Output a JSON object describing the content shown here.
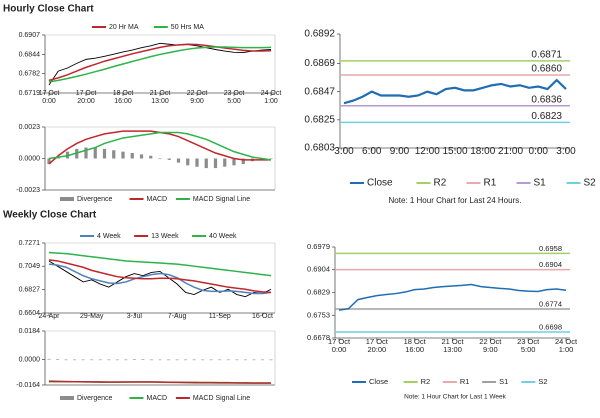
{
  "headers": [
    "Hourly Close Chart",
    "Weekly Close Chart"
  ],
  "chart_data": [
    {
      "type": "line",
      "legend": "top",
      "categories": [
        "17 Oct 0:00",
        null,
        null,
        null,
        "17 Oct 20:00",
        null,
        null,
        null,
        "18 Oct 16:00",
        null,
        null,
        null,
        "21 Oct 13:00",
        null,
        null,
        null,
        "22 Oct 9:00",
        null,
        null,
        null,
        "23 Oct 5:00",
        null,
        null,
        null,
        "24 Oct 1:00"
      ],
      "ylim": [
        0.6719,
        0.6907
      ],
      "yticks": [
        0.6719,
        0.6782,
        0.6844,
        0.6907
      ],
      "series": [
        {
          "color": "#000000",
          "values": [
            0.6745,
            0.679,
            0.68,
            0.6815,
            0.6828,
            0.6832,
            0.6838,
            0.6845,
            0.6852,
            0.6858,
            0.6866,
            0.6872,
            0.688,
            0.6877,
            0.6874,
            0.6876,
            0.6872,
            0.6866,
            0.686,
            0.6855,
            0.6851,
            0.685,
            0.6855,
            0.6858,
            0.686
          ]
        },
        {
          "name": "20 Hr MA",
          "color": "#c0272d",
          "values": [
            0.676,
            0.6768,
            0.6778,
            0.679,
            0.6802,
            0.6812,
            0.6822,
            0.683,
            0.6838,
            0.6846,
            0.6853,
            0.686,
            0.6867,
            0.6872,
            0.6875,
            0.6877,
            0.6876,
            0.6873,
            0.6869,
            0.6865,
            0.6861,
            0.6857,
            0.6855,
            0.6855,
            0.6856
          ]
        },
        {
          "name": "50 Hrs MA",
          "color": "#2db34a",
          "values": [
            0.6755,
            0.676,
            0.6766,
            0.6773,
            0.678,
            0.6788,
            0.6796,
            0.6805,
            0.6813,
            0.6821,
            0.6829,
            0.6837,
            0.6844,
            0.685,
            0.6856,
            0.6861,
            0.6865,
            0.6867,
            0.6868,
            0.6868,
            0.6867,
            0.6866,
            0.6866,
            0.6866,
            0.6867
          ]
        }
      ]
    },
    {
      "type": "line",
      "legend": "bottom",
      "ylim": [
        -0.0023,
        0.0023
      ],
      "yticks": [
        -0.0023,
        {
          "value": 0,
          "label": "0.0000"
        },
        0.0023
      ],
      "series": [
        {
          "name": "Divergence",
          "color": "#8c8c8c",
          "style": "bar",
          "values": [
            -0.0004,
            0.0001,
            0.0005,
            0.0007,
            0.0008,
            0.0008,
            0.0007,
            0.0006,
            0.0005,
            0.0004,
            0.0003,
            0.0002,
            0.0,
            -0.0001,
            -0.0003,
            -0.0005,
            -0.0006,
            -0.0007,
            -0.0007,
            -0.0006,
            -0.0005,
            -0.0004,
            -0.0002,
            -0.0001,
            0.0
          ]
        },
        {
          "name": "MACD",
          "color": "#c0272d",
          "values": [
            -0.0004,
            0.0002,
            0.0007,
            0.0011,
            0.0014,
            0.0016,
            0.0018,
            0.0019,
            0.002,
            0.002,
            0.002,
            0.002,
            0.0019,
            0.0018,
            0.0016,
            0.0013,
            0.001,
            0.0007,
            0.0004,
            0.0002,
            0.0,
            -0.0001,
            -0.0001,
            -0.0001,
            -0.0001
          ]
        },
        {
          "name": "MACD Signal Line",
          "color": "#2db34a",
          "values": [
            0.0,
            0.0001,
            0.0002,
            0.0004,
            0.0006,
            0.0008,
            0.0011,
            0.0013,
            0.0015,
            0.0016,
            0.0017,
            0.0018,
            0.0019,
            0.0019,
            0.0019,
            0.0018,
            0.0016,
            0.0014,
            0.0011,
            0.0008,
            0.0005,
            0.0003,
            0.0001,
            0.0,
            -0.0001
          ]
        }
      ]
    },
    {
      "type": "line",
      "legend": "bottom",
      "note": "Note: 1 Hour Chart for Last 24 Hours.",
      "categories": [
        "3:00",
        null,
        null,
        "6:00",
        null,
        null,
        "9:00",
        null,
        null,
        "12:00",
        null,
        null,
        "15:00",
        null,
        null,
        "18:00",
        null,
        null,
        "21:00",
        null,
        null,
        "0:00",
        null,
        null,
        "3:00"
      ],
      "ylim": [
        0.6803,
        0.6892
      ],
      "yticks": [
        0.6803,
        0.6825,
        0.6847,
        0.6869,
        0.6892
      ],
      "series": [
        {
          "name": "Close",
          "color": "#1f6db5",
          "values": [
            0.6838,
            0.684,
            0.6843,
            0.6847,
            0.6844,
            0.6844,
            0.6844,
            0.6843,
            0.6844,
            0.6847,
            0.6845,
            0.6849,
            0.685,
            0.6848,
            0.6848,
            0.685,
            0.6852,
            0.6853,
            0.6851,
            0.6852,
            0.685,
            0.6851,
            0.6849,
            0.6856,
            0.6849
          ]
        }
      ],
      "reference_lines": [
        {
          "name": "R2",
          "value": 0.6871,
          "color": "#a3d063"
        },
        {
          "name": "R1",
          "value": 0.686,
          "label": "0.6860",
          "color": "#e8a9a9"
        },
        {
          "name": "S1",
          "value": 0.6836,
          "color": "#b59bd0"
        },
        {
          "name": "S2",
          "value": 0.6823,
          "color": "#6fd0e3"
        }
      ]
    },
    {
      "type": "line",
      "legend": "top",
      "categories": [
        "24-Apr",
        null,
        null,
        null,
        null,
        "29-May",
        null,
        null,
        null,
        null,
        "3-Jul",
        null,
        null,
        null,
        null,
        "7-Aug",
        null,
        null,
        null,
        null,
        "11-Sep",
        null,
        null,
        null,
        null,
        "16-Oct",
        null
      ],
      "ylim": [
        0.6604,
        0.7271
      ],
      "yticks": [
        0.6604,
        0.6827,
        0.7049,
        0.7271
      ],
      "series": [
        {
          "color": "#000000",
          "values": [
            0.71,
            0.705,
            0.7,
            0.695,
            0.69,
            0.692,
            0.688,
            0.685,
            0.69,
            0.695,
            0.698,
            0.696,
            0.699,
            0.7,
            0.694,
            0.688,
            0.68,
            0.678,
            0.682,
            0.685,
            0.68,
            0.683,
            0.678,
            0.676,
            0.68,
            0.679,
            0.683
          ]
        },
        {
          "name": "4 Week",
          "color": "#4f81bd",
          "values": [
            0.707,
            0.706,
            0.704,
            0.7,
            0.696,
            0.693,
            0.691,
            0.689,
            0.6885,
            0.69,
            0.693,
            0.695,
            0.697,
            0.698,
            0.697,
            0.694,
            0.689,
            0.685,
            0.682,
            0.681,
            0.681,
            0.6815,
            0.681,
            0.68,
            0.679,
            0.679,
            0.68
          ]
        },
        {
          "name": "13 Week",
          "color": "#c0272d",
          "values": [
            0.711,
            0.71,
            0.708,
            0.706,
            0.704,
            0.701,
            0.699,
            0.697,
            0.695,
            0.694,
            0.6935,
            0.693,
            0.693,
            0.6935,
            0.6935,
            0.693,
            0.692,
            0.691,
            0.6895,
            0.688,
            0.6865,
            0.685,
            0.684,
            0.683,
            0.6815,
            0.6805,
            0.68
          ]
        },
        {
          "name": "40 Week",
          "color": "#2db34a",
          "values": [
            0.718,
            0.7175,
            0.717,
            0.716,
            0.715,
            0.714,
            0.713,
            0.712,
            0.711,
            0.71,
            0.7095,
            0.709,
            0.7085,
            0.708,
            0.7075,
            0.707,
            0.706,
            0.705,
            0.704,
            0.703,
            0.702,
            0.701,
            0.7,
            0.699,
            0.698,
            0.697,
            0.696
          ]
        }
      ]
    },
    {
      "type": "line",
      "legend": "bottom",
      "ylim": [
        -0.0164,
        0.0184
      ],
      "yticks": [
        -0.0164,
        {
          "value": 0,
          "label": "0.0000"
        },
        0.0184
      ],
      "series": [
        {
          "name": "Divergence",
          "color": "#8c8c8c",
          "style": "bar",
          "values": [
            0.0004,
            0.0002,
            0,
            0,
            -0.0001,
            -0.0001,
            -0.0002,
            -0.0001,
            -0.0001,
            0,
            0.0001,
            0.0001,
            0,
            -0.0001,
            -0.0001,
            -0.0002,
            -0.0002,
            -0.0003,
            -0.0002,
            -0.0002,
            -0.0002,
            -0.0002,
            -0.0001,
            -0.0002,
            -0.0001,
            -0.0001,
            -0.0001
          ]
        },
        {
          "name": "MACD",
          "color": "#2db34a",
          "values": [
            -0.0138,
            -0.014,
            -0.0142,
            -0.0143,
            -0.0144,
            -0.0145,
            -0.0146,
            -0.0146,
            -0.0146,
            -0.0145,
            -0.0144,
            -0.0144,
            -0.0145,
            -0.0146,
            -0.0147,
            -0.0148,
            -0.0149,
            -0.015,
            -0.015,
            -0.015,
            -0.0151,
            -0.0151,
            -0.0151,
            -0.0152,
            -0.0152,
            -0.0152,
            -0.0152
          ]
        },
        {
          "name": "MACD Signal Line",
          "color": "#c0272d",
          "values": [
            -0.0142,
            -0.0142,
            -0.0142,
            -0.0143,
            -0.0143,
            -0.0144,
            -0.0144,
            -0.0145,
            -0.0145,
            -0.0145,
            -0.0145,
            -0.0145,
            -0.0145,
            -0.0145,
            -0.0146,
            -0.0146,
            -0.0147,
            -0.0147,
            -0.0148,
            -0.0148,
            -0.0149,
            -0.0149,
            -0.015,
            -0.015,
            -0.0151,
            -0.0151,
            -0.0151
          ]
        }
      ]
    },
    {
      "type": "line",
      "legend": "bottom",
      "note": "Note: 1 Hour Chart for Last 1 Week",
      "categories": [
        "17 Oct 0:00",
        null,
        null,
        null,
        "17 Oct 20:00",
        null,
        null,
        null,
        "18 Oct 16:00",
        null,
        null,
        null,
        "21 Oct 13:00",
        null,
        null,
        null,
        "22 Oct 9:00",
        null,
        null,
        null,
        "23 Oct 5:00",
        null,
        null,
        null,
        "24 Oct 1:00"
      ],
      "ylim": [
        0.6678,
        0.6979
      ],
      "yticks": [
        0.6678,
        0.6753,
        0.6829,
        0.6904,
        0.6979
      ],
      "series": [
        {
          "name": "Close",
          "color": "#1f6db5",
          "values": [
            0.677,
            0.6775,
            0.6805,
            0.6812,
            0.6818,
            0.6822,
            0.6825,
            0.683,
            0.6838,
            0.684,
            0.6845,
            0.6848,
            0.685,
            0.6852,
            0.6855,
            0.6848,
            0.6845,
            0.6842,
            0.684,
            0.6835,
            0.6833,
            0.6832,
            0.6838,
            0.684,
            0.6836
          ]
        }
      ],
      "reference_lines": [
        {
          "name": "R2",
          "value": 0.6958,
          "color": "#a3d063"
        },
        {
          "name": "R1",
          "value": 0.6904,
          "color": "#e8a9a9"
        },
        {
          "name": "S1",
          "value": 0.6774,
          "color": "#a0a0a0"
        },
        {
          "name": "S2",
          "value": 0.6698,
          "color": "#6fd0e3"
        }
      ]
    }
  ]
}
